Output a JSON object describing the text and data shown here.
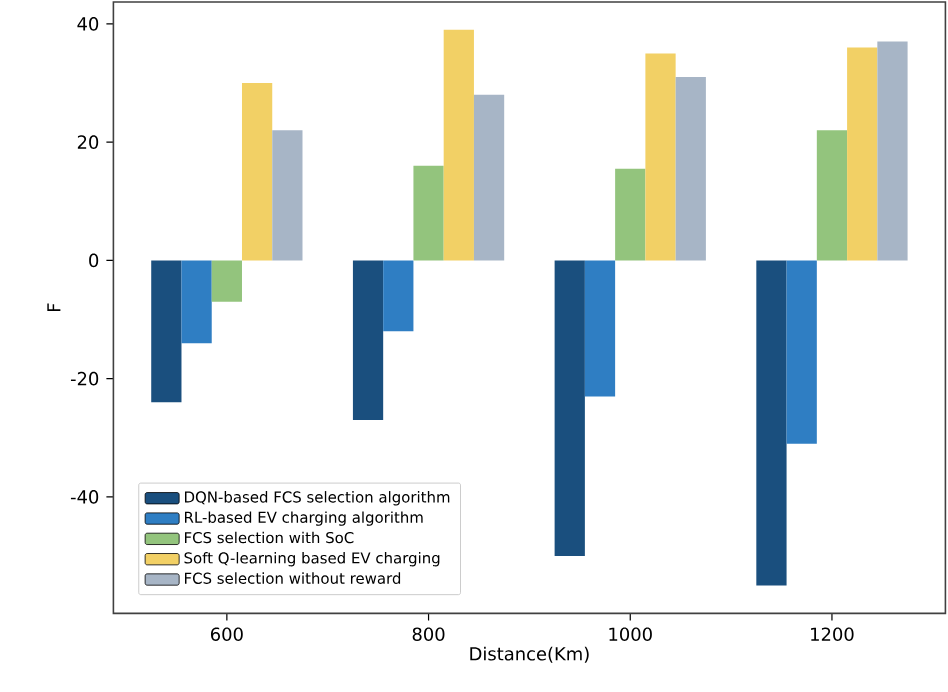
{
  "chart_data": {
    "type": "bar",
    "xlabel": "Distance(Km)",
    "ylabel": "F",
    "x": [
      600,
      800,
      1000,
      1200
    ],
    "xlim": [
      487.5,
      1312.5
    ],
    "xticks": [
      600,
      800,
      1000,
      1200
    ],
    "ylim": [
      -59.7,
      43.7
    ],
    "yticks": [
      -40,
      -20,
      0,
      20,
      40
    ],
    "legend": "bottom left",
    "series": [
      {
        "name": "DQN-based FCS selection algorithm",
        "color": "#1a4f7e",
        "values": [
          -24,
          -27,
          -50,
          -55
        ]
      },
      {
        "name": "RL-based EV charging algorithm",
        "color": "#2f7ec3",
        "values": [
          -14,
          -12,
          -23,
          -31
        ]
      },
      {
        "name": "FCS selection with SoC",
        "color": "#93c47d",
        "values": [
          -7,
          16,
          15.5,
          22
        ]
      },
      {
        "name": "Soft Q-learning based EV charging",
        "color": "#f2d065",
        "values": [
          30,
          39,
          35,
          36
        ]
      },
      {
        "name": "FCS selection without reward",
        "color": "#a7b5c6",
        "values": [
          22,
          28,
          31,
          37
        ]
      }
    ]
  }
}
